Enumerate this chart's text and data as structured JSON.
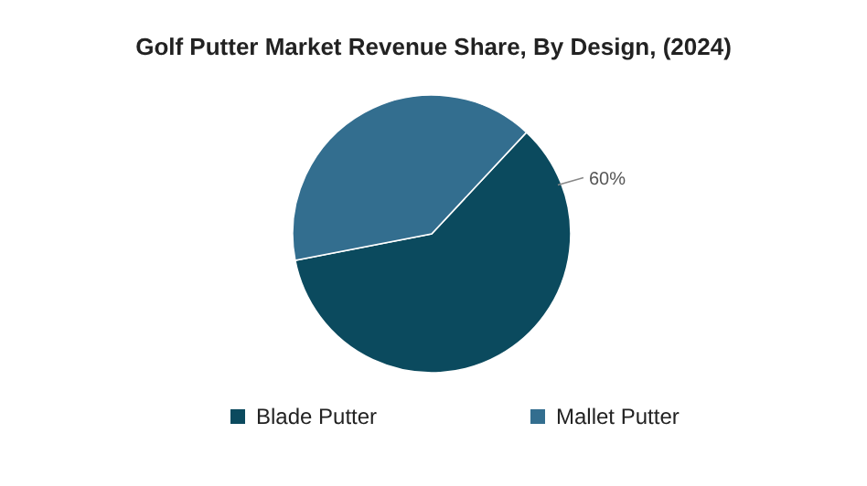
{
  "chart_data": {
    "type": "pie",
    "title": "Golf Putter Market Revenue Share, By Design, (2024)",
    "categories": [
      "Blade Putter",
      "Mallet Putter"
    ],
    "values": [
      60,
      40
    ],
    "colors": [
      "#0b4a5e",
      "#336e8f"
    ],
    "value_labels": [
      "60%",
      null
    ],
    "legend": "bottom"
  }
}
